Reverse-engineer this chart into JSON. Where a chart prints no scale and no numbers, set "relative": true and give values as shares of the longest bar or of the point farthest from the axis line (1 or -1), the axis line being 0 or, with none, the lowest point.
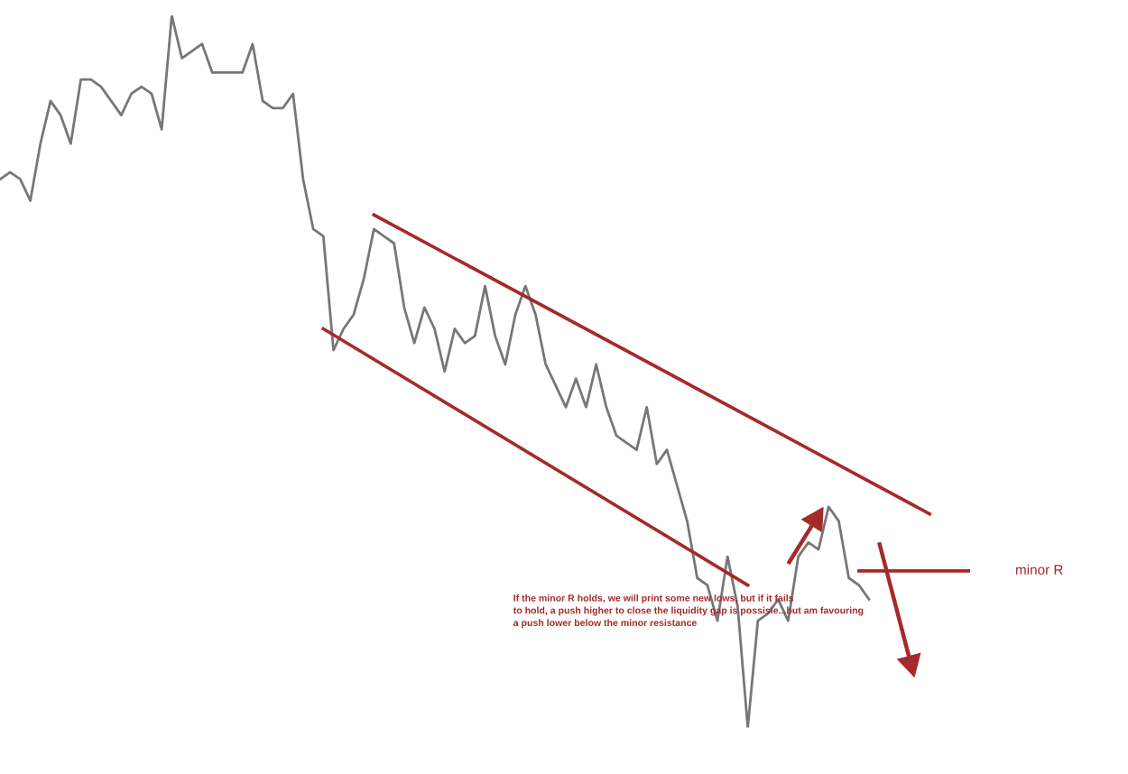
{
  "chart_data": {
    "type": "line",
    "relative": true,
    "categories": [
      null,
      null,
      null,
      null,
      null,
      null,
      null,
      null,
      null,
      null,
      null,
      null,
      null,
      null,
      null,
      null,
      null,
      null,
      null,
      null,
      null,
      null,
      null,
      null,
      null,
      null,
      null,
      null,
      null,
      null,
      null,
      null,
      null,
      null,
      null,
      null,
      null,
      null,
      null,
      null,
      null,
      null,
      null,
      null,
      null,
      null,
      null,
      null,
      null,
      null,
      null,
      null,
      null,
      null,
      null,
      null,
      null,
      null,
      null,
      null,
      null,
      null,
      null,
      null,
      null,
      null,
      null,
      null,
      null,
      null,
      null,
      null,
      null,
      null,
      null,
      null,
      null,
      null,
      null,
      null,
      null,
      null,
      null,
      null,
      null,
      null,
      null,
      null,
      null,
      null,
      null,
      null,
      null,
      null,
      null,
      null,
      null
    ],
    "series": [
      {
        "color": "#777777",
        "values": [
          0.77,
          0.78,
          0.77,
          0.74,
          0.82,
          0.88,
          0.86,
          0.82,
          0.91,
          0.91,
          0.9,
          0.88,
          0.86,
          0.89,
          0.9,
          0.89,
          0.84,
          1.0,
          0.94,
          0.95,
          0.96,
          0.92,
          0.92,
          0.92,
          0.92,
          0.96,
          0.88,
          0.87,
          0.87,
          0.89,
          0.77,
          0.7,
          0.69,
          0.53,
          0.56,
          0.58,
          0.63,
          0.7,
          0.69,
          0.68,
          0.59,
          0.54,
          0.59,
          0.56,
          0.5,
          0.56,
          0.54,
          0.55,
          0.62,
          0.55,
          0.51,
          0.58,
          0.62,
          0.58,
          0.51,
          0.48,
          0.45,
          0.49,
          0.45,
          0.51,
          0.45,
          0.41,
          0.4,
          0.39,
          0.45,
          0.37,
          0.39,
          0.34,
          0.29,
          0.21,
          0.2,
          0.15,
          0.24,
          0.17,
          0.0,
          0.15,
          0.16,
          0.18,
          0.15,
          0.24,
          0.26,
          0.25,
          0.31,
          0.29,
          0.21,
          0.2,
          0.18,
          null,
          null,
          null,
          null,
          null,
          null,
          null,
          null,
          null,
          null
        ]
      },
      {
        "color": "#a52a2a",
        "values": [
          null,
          null,
          null,
          null,
          null,
          null,
          null,
          null,
          null,
          null,
          null,
          null,
          null,
          null,
          null,
          null,
          null,
          null,
          null,
          null,
          null,
          null,
          null,
          null,
          null,
          null,
          null,
          null,
          null,
          null,
          null,
          null,
          null,
          null,
          null,
          null,
          null,
          0.72,
          null,
          null,
          null,
          null,
          null,
          null,
          null,
          null,
          null,
          null,
          null,
          null,
          null,
          null,
          null,
          null,
          null,
          null,
          null,
          null,
          null,
          null,
          null,
          null,
          null,
          null,
          null,
          null,
          null,
          null,
          null,
          null,
          null,
          null,
          null,
          null,
          null,
          null,
          null,
          null,
          null,
          null,
          null,
          null,
          null,
          null,
          null,
          null,
          null,
          null,
          null,
          null,
          null,
          null,
          0.3,
          null,
          null,
          null,
          null
        ]
      },
      {
        "color": "#a52a2a",
        "values": [
          null,
          null,
          null,
          null,
          null,
          null,
          null,
          null,
          null,
          null,
          null,
          null,
          null,
          null,
          null,
          null,
          null,
          null,
          null,
          null,
          null,
          null,
          null,
          null,
          null,
          null,
          null,
          null,
          null,
          null,
          null,
          null,
          0.56,
          null,
          null,
          null,
          null,
          null,
          null,
          null,
          null,
          null,
          null,
          null,
          null,
          null,
          null,
          null,
          null,
          null,
          null,
          null,
          null,
          null,
          null,
          null,
          null,
          null,
          null,
          null,
          null,
          null,
          null,
          null,
          null,
          null,
          null,
          null,
          null,
          null,
          null,
          null,
          null,
          null,
          0.2,
          null,
          null,
          null,
          null,
          null,
          null,
          null,
          null,
          null,
          null,
          null,
          null,
          null,
          null,
          null,
          null,
          null,
          null,
          null,
          null,
          null,
          null
        ]
      },
      {
        "color": "#a52a2a",
        "name": "minor R",
        "values": [
          null,
          null,
          null,
          null,
          null,
          null,
          null,
          null,
          null,
          null,
          null,
          null,
          null,
          null,
          null,
          null,
          null,
          null,
          null,
          null,
          null,
          null,
          null,
          null,
          null,
          null,
          null,
          null,
          null,
          null,
          null,
          null,
          null,
          null,
          null,
          null,
          null,
          null,
          null,
          null,
          null,
          null,
          null,
          null,
          null,
          null,
          null,
          null,
          null,
          null,
          null,
          null,
          null,
          null,
          null,
          null,
          null,
          null,
          null,
          null,
          null,
          null,
          null,
          null,
          null,
          null,
          null,
          null,
          null,
          null,
          null,
          null,
          null,
          null,
          null,
          null,
          null,
          null,
          null,
          null,
          null,
          null,
          null,
          null,
          null,
          0.22,
          null,
          null,
          null,
          null,
          null,
          null,
          null,
          null,
          null,
          null,
          0.22
        ]
      }
    ],
    "annotations": [
      "If the minor R holds, we will print some new lows, but if it fails\nto hold, a push higher to close the liquidity gap is possisle...but am favouring\na push lower below the minor resistance"
    ]
  }
}
